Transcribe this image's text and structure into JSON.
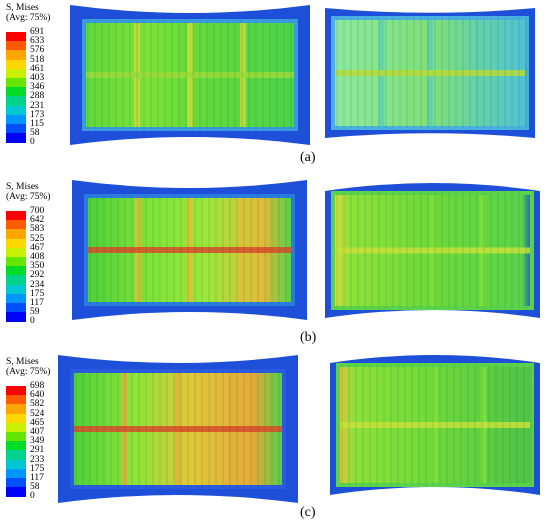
{
  "figure": {
    "rows": [
      {
        "label": "(a)",
        "legend": {
          "title_line1": "S, Mises",
          "title_line2": "(Avg: 75%)",
          "ticks": [
            "691",
            "633",
            "576",
            "518",
            "461",
            "403",
            "346",
            "288",
            "231",
            "173",
            "115",
            "58",
            "0"
          ]
        }
      },
      {
        "label": "(b)",
        "legend": {
          "title_line1": "S, Mises",
          "title_line2": "(Avg: 75%)",
          "ticks": [
            "700",
            "642",
            "583",
            "525",
            "467",
            "408",
            "350",
            "292",
            "234",
            "175",
            "117",
            "59",
            "0"
          ]
        }
      },
      {
        "label": "(c)",
        "legend": {
          "title_line1": "S, Mises",
          "title_line2": "(Avg: 75%)",
          "ticks": [
            "698",
            "640",
            "582",
            "524",
            "465",
            "407",
            "349",
            "291",
            "233",
            "175",
            "117",
            "58",
            "0"
          ]
        }
      }
    ],
    "color_scale": [
      "#ff0000",
      "#ff5a00",
      "#ffa500",
      "#ffd700",
      "#c8f000",
      "#64e600",
      "#00dc28",
      "#00d28c",
      "#00c8d2",
      "#0096ff",
      "#0050ff",
      "#0000ff"
    ]
  }
}
